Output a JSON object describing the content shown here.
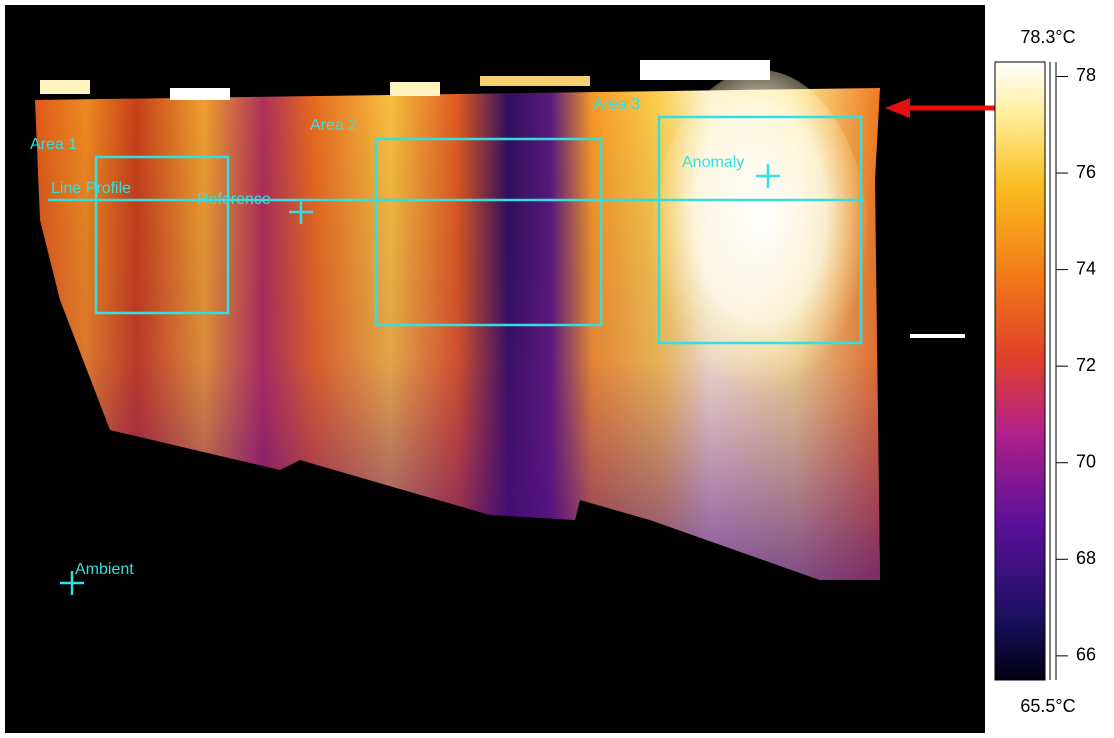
{
  "overlays": [
    {
      "label": "Area 1"
    },
    {
      "label": "Area 2"
    },
    {
      "label": "Area 3"
    },
    {
      "label": "Line Profile"
    },
    {
      "label": "Reference"
    },
    {
      "label": "Anomaly"
    },
    {
      "label": "Ambient"
    }
  ],
  "colorbar": {
    "max": {
      "value": 78.3,
      "label": "78.3°C"
    },
    "min": {
      "value": 65.5,
      "label": "65.5°C"
    },
    "ticks": [
      66,
      68,
      70,
      72,
      74,
      76,
      78
    ]
  }
}
